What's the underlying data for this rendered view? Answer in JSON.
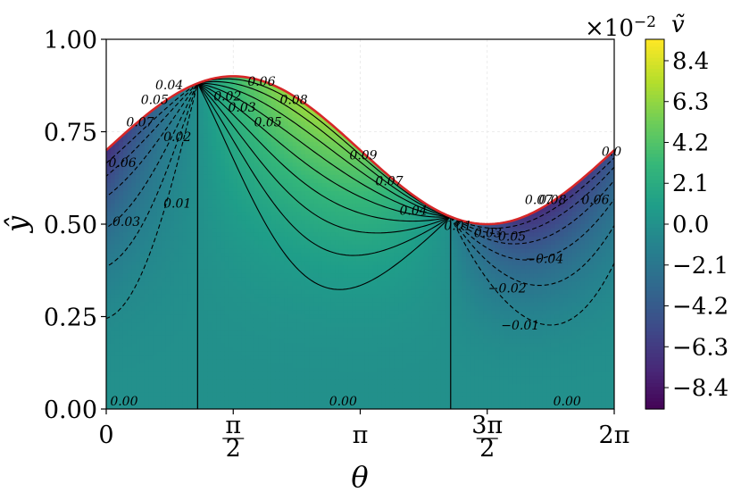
{
  "chart_data": {
    "type": "heatmap",
    "xlabel": "θ",
    "ylabel": "ŷ",
    "xlim": [
      0,
      6.2832
    ],
    "ylim": [
      0,
      1
    ],
    "xticks": [
      {
        "value": 0,
        "label": "0"
      },
      {
        "value": 1.5708,
        "label_num": "π",
        "label_den": "2"
      },
      {
        "value": 3.1416,
        "label": "π"
      },
      {
        "value": 4.7124,
        "label_num": "3π",
        "label_den": "2"
      },
      {
        "value": 6.2832,
        "label": "2π"
      }
    ],
    "yticks": [
      "0.00",
      "0.25",
      "0.50",
      "0.75",
      "1.00"
    ],
    "grid": true,
    "free_surface": {
      "description": "upper boundary ŷ = 0.7 + 0.2·sin(θ)",
      "mean": 0.7,
      "amplitude": 0.2,
      "color": "#d62728"
    },
    "field_peak_value": 0.085,
    "field_trough_value": -0.085,
    "zero_contour_thetas": [
      1.13,
      4.26
    ],
    "colorbar": {
      "label": "ṽ",
      "multiplier_base": "×10",
      "multiplier_exp": "−2",
      "ticks": [
        "8.4",
        "6.3",
        "4.2",
        "2.1",
        "0.0",
        "−2.1",
        "−4.2",
        "−6.3",
        "−8.4"
      ],
      "range": [
        -9.5,
        9.5
      ],
      "colormap": "viridis"
    },
    "contour_labels": [
      {
        "text": "0.07",
        "theta": 0.42,
        "y": 0.76
      },
      {
        "text": "0.05",
        "theta": 0.6,
        "y": 0.82
      },
      {
        "text": "0.04",
        "theta": 0.78,
        "y": 0.86
      },
      {
        "text": "0.06",
        "theta": 0.2,
        "y": 0.65
      },
      {
        "text": "0.02",
        "theta": 0.88,
        "y": 0.72
      },
      {
        "text": "0.03",
        "theta": 0.25,
        "y": 0.49
      },
      {
        "text": "0.01",
        "theta": 0.88,
        "y": 0.54
      },
      {
        "text": "0.00",
        "theta": 0.22,
        "y": 0.005
      },
      {
        "text": "0.02",
        "theta": 1.5,
        "y": 0.83
      },
      {
        "text": "0.03",
        "theta": 1.68,
        "y": 0.8
      },
      {
        "text": "0.06",
        "theta": 1.92,
        "y": 0.87
      },
      {
        "text": "0.05",
        "theta": 2.0,
        "y": 0.76
      },
      {
        "text": "0.08",
        "theta": 2.32,
        "y": 0.82
      },
      {
        "text": "0.09",
        "theta": 3.18,
        "y": 0.67
      },
      {
        "text": "0.07",
        "theta": 3.5,
        "y": 0.6
      },
      {
        "text": "0.04",
        "theta": 3.8,
        "y": 0.52
      },
      {
        "text": "0.00",
        "theta": 2.93,
        "y": 0.005
      },
      {
        "text": "0.01",
        "theta": 4.35,
        "y": 0.48
      },
      {
        "text": "0.03",
        "theta": 4.72,
        "y": 0.46
      },
      {
        "text": "0.05",
        "theta": 5.02,
        "y": 0.45
      },
      {
        "text": "0.07",
        "theta": 5.35,
        "y": 0.55
      },
      {
        "text": "0.08",
        "theta": 5.52,
        "y": 0.55
      },
      {
        "text": "0.06",
        "theta": 6.05,
        "y": 0.55
      },
      {
        "text": "0.0",
        "theta": 6.25,
        "y": 0.68
      },
      {
        "text": "−0.04",
        "theta": 5.42,
        "y": 0.39
      },
      {
        "text": "−0.02",
        "theta": 4.96,
        "y": 0.31
      },
      {
        "text": "−0.01",
        "theta": 5.12,
        "y": 0.21
      },
      {
        "text": "0.00",
        "theta": 5.7,
        "y": 0.005
      }
    ]
  }
}
